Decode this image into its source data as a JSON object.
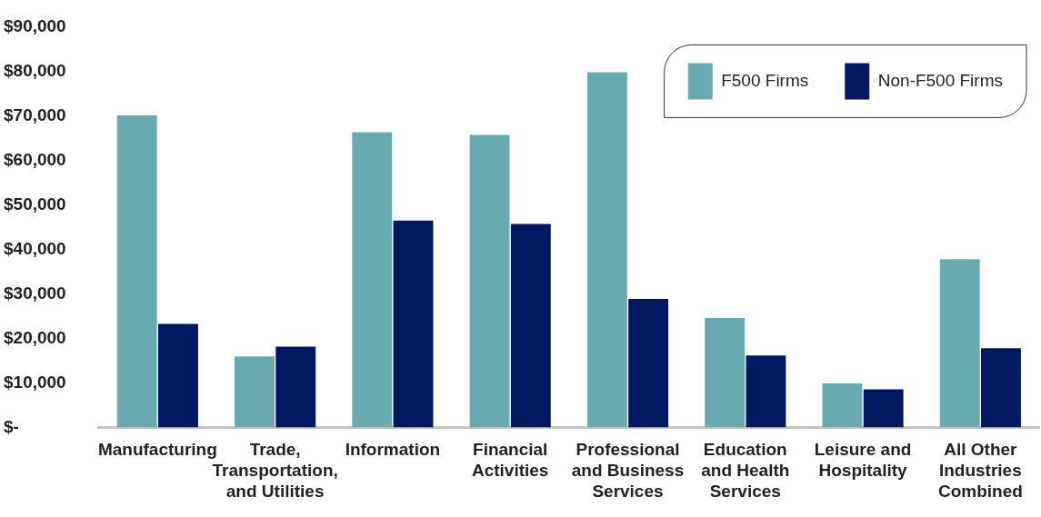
{
  "chart_data": {
    "type": "bar",
    "categories": [
      "Manufacturing",
      "Trade, Transportation, and Utilities",
      "Information",
      "Financial Activities",
      "Professional and Business Services",
      "Education and Health Services",
      "Leisure and Hospitality",
      "All Other Industries Combined"
    ],
    "series": [
      {
        "name": "F500 Firms",
        "color": "#67abb0",
        "values": [
          70100,
          16000,
          66300,
          65700,
          79800,
          24600,
          9900,
          37800
        ]
      },
      {
        "name": "Non-F500 Firms",
        "color": "#001861",
        "values": [
          23300,
          18200,
          46500,
          45700,
          28900,
          16200,
          8600,
          17800
        ]
      }
    ],
    "ylim": [
      0,
      90000
    ],
    "yticks": [
      {
        "value": 0,
        "label": "$-"
      },
      {
        "value": 10000,
        "label": "$10,000"
      },
      {
        "value": 20000,
        "label": "$20,000"
      },
      {
        "value": 30000,
        "label": "$30,000"
      },
      {
        "value": 40000,
        "label": "$40,000"
      },
      {
        "value": 50000,
        "label": "$50,000"
      },
      {
        "value": 60000,
        "label": "$60,000"
      },
      {
        "value": 70000,
        "label": "$70,000"
      },
      {
        "value": 80000,
        "label": "$80,000"
      },
      {
        "value": 90000,
        "label": "$90,000"
      }
    ],
    "grid": false,
    "legend": "top right"
  }
}
